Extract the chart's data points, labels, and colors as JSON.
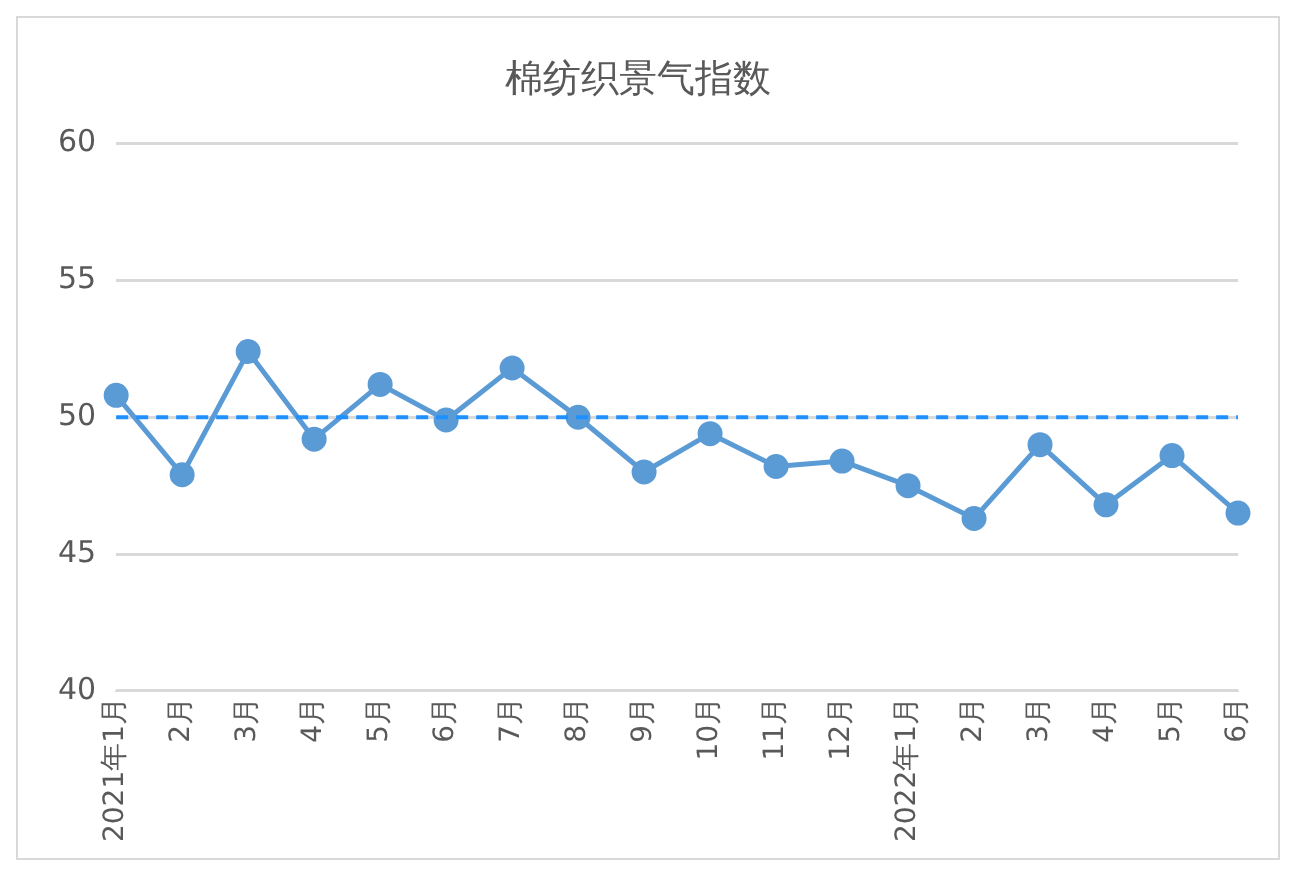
{
  "chart_data": {
    "type": "line",
    "title": "棉纺织景气指数",
    "categories": [
      "2021年1月",
      "2月",
      "3月",
      "4月",
      "5月",
      "6月",
      "7月",
      "8月",
      "9月",
      "10月",
      "11月",
      "12月",
      "2022年1月",
      "2月",
      "3月",
      "4月",
      "5月",
      "6月"
    ],
    "series": [
      {
        "color": "#5b9bd5",
        "values": [
          50.8,
          47.9,
          52.4,
          49.2,
          51.2,
          49.9,
          51.8,
          50.0,
          48.0,
          49.4,
          48.2,
          48.4,
          47.5,
          46.3,
          49.0,
          46.8,
          48.6,
          46.5
        ]
      }
    ],
    "ylim": [
      40,
      60
    ],
    "yticks": [
      40,
      45,
      50,
      55,
      60
    ],
    "grid": "y",
    "legend": false,
    "marker": "circle",
    "line_style": "solid",
    "ref_lines": [
      {
        "axis": "y",
        "value": 50,
        "color": "#1e90ff",
        "line_style": "dashed"
      }
    ]
  }
}
